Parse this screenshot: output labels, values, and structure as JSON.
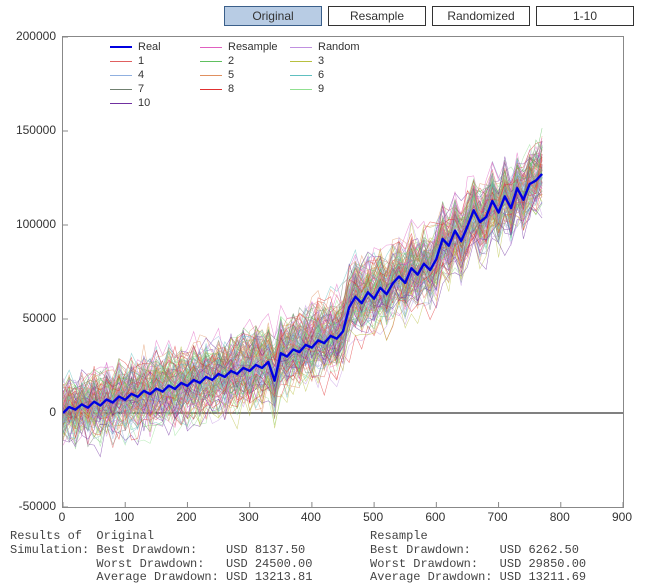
{
  "buttons": {
    "original": "Original",
    "resample": "Resample",
    "randomized": "Randomized",
    "range": "1-10",
    "active": "original"
  },
  "chart": {
    "type": "line",
    "xlim": [
      0,
      900
    ],
    "ylim": [
      -50000,
      200000
    ],
    "xtick_step": 100,
    "ytick_step": 50000,
    "xticks": [
      0,
      100,
      200,
      300,
      400,
      500,
      600,
      700,
      800,
      900
    ],
    "yticks": [
      -50000,
      0,
      50000,
      100000,
      150000,
      200000
    ],
    "background_color": "#ffffff",
    "axis_color": "#888888",
    "zero_line_color": "#000000",
    "tick_font_size": 12,
    "real_series": {
      "label": "Real",
      "color": "#0000e0",
      "width": 2.4,
      "xy": [
        [
          0,
          0
        ],
        [
          10,
          3200
        ],
        [
          20,
          1800
        ],
        [
          30,
          4600
        ],
        [
          40,
          2800
        ],
        [
          50,
          6000
        ],
        [
          60,
          4000
        ],
        [
          70,
          7200
        ],
        [
          80,
          5600
        ],
        [
          90,
          8800
        ],
        [
          100,
          7000
        ],
        [
          110,
          10200
        ],
        [
          120,
          8600
        ],
        [
          130,
          11800
        ],
        [
          140,
          10000
        ],
        [
          150,
          13000
        ],
        [
          160,
          11400
        ],
        [
          170,
          14600
        ],
        [
          180,
          12800
        ],
        [
          190,
          16000
        ],
        [
          200,
          14400
        ],
        [
          210,
          17600
        ],
        [
          220,
          16000
        ],
        [
          230,
          19200
        ],
        [
          240,
          17600
        ],
        [
          250,
          20800
        ],
        [
          260,
          19200
        ],
        [
          270,
          22400
        ],
        [
          280,
          20800
        ],
        [
          290,
          24000
        ],
        [
          300,
          22400
        ],
        [
          310,
          25600
        ],
        [
          320,
          24000
        ],
        [
          330,
          27200
        ],
        [
          340,
          17200
        ],
        [
          350,
          31800
        ],
        [
          360,
          30000
        ],
        [
          370,
          33800
        ],
        [
          380,
          32400
        ],
        [
          390,
          36200
        ],
        [
          400,
          34800
        ],
        [
          410,
          38600
        ],
        [
          420,
          37200
        ],
        [
          430,
          41000
        ],
        [
          440,
          39600
        ],
        [
          450,
          43400
        ],
        [
          460,
          56200
        ],
        [
          470,
          61800
        ],
        [
          480,
          58400
        ],
        [
          490,
          64200
        ],
        [
          500,
          60800
        ],
        [
          510,
          66600
        ],
        [
          520,
          63200
        ],
        [
          530,
          69000
        ],
        [
          540,
          72600
        ],
        [
          550,
          69200
        ],
        [
          560,
          77000
        ],
        [
          570,
          73600
        ],
        [
          580,
          79400
        ],
        [
          590,
          76000
        ],
        [
          600,
          81800
        ],
        [
          610,
          92600
        ],
        [
          620,
          89000
        ],
        [
          630,
          97000
        ],
        [
          640,
          91400
        ],
        [
          650,
          99200
        ],
        [
          660,
          107800
        ],
        [
          670,
          101600
        ],
        [
          680,
          104200
        ],
        [
          690,
          112800
        ],
        [
          700,
          106600
        ],
        [
          710,
          115200
        ],
        [
          720,
          109000
        ],
        [
          730,
          119600
        ],
        [
          740,
          113400
        ],
        [
          750,
          121800
        ],
        [
          760,
          123600
        ],
        [
          770,
          127200
        ]
      ]
    },
    "sim_series": [
      {
        "label": "Resample",
        "color": "#e060c0",
        "width": 0.6
      },
      {
        "label": "Random",
        "color": "#c090e0",
        "width": 0.6
      },
      {
        "label": "1",
        "color": "#e06060",
        "width": 0.6
      },
      {
        "label": "2",
        "color": "#60c060",
        "width": 0.6
      },
      {
        "label": "3",
        "color": "#b8c040",
        "width": 0.6
      },
      {
        "label": "4",
        "color": "#90b0e0",
        "width": 0.6
      },
      {
        "label": "5",
        "color": "#e09060",
        "width": 0.6
      },
      {
        "label": "6",
        "color": "#60c0c0",
        "width": 0.6
      },
      {
        "label": "7",
        "color": "#708070",
        "width": 0.6
      },
      {
        "label": "8",
        "color": "#e03030",
        "width": 0.6
      },
      {
        "label": "9",
        "color": "#90e090",
        "width": 0.6
      },
      {
        "label": "10",
        "color": "#7030a0",
        "width": 0.6
      }
    ],
    "sim_count": 120,
    "sim_seed": 42,
    "sim_noise_scale": 32000,
    "sim_line_width": 0.55,
    "sim_line_opacity": 0.65,
    "legend_columns": 3,
    "legend_fontsize": 11
  },
  "results": {
    "header_left": "Results of",
    "header_left2": "Simulation:",
    "col1_title": "Original",
    "col2_title": "Resample",
    "rows": [
      {
        "label": "Best Drawdown:",
        "v1": "USD 8137.50",
        "v2": "USD 6262.50"
      },
      {
        "label": "Worst Drawdown:",
        "v1": "USD 24500.00",
        "v2": "USD 29850.00"
      },
      {
        "label": "Average Drawdown:",
        "v1": "USD 13213.81",
        "v2": "USD 13211.69"
      }
    ],
    "font_family": "Courier New",
    "font_size": 12,
    "color": "#444444"
  }
}
